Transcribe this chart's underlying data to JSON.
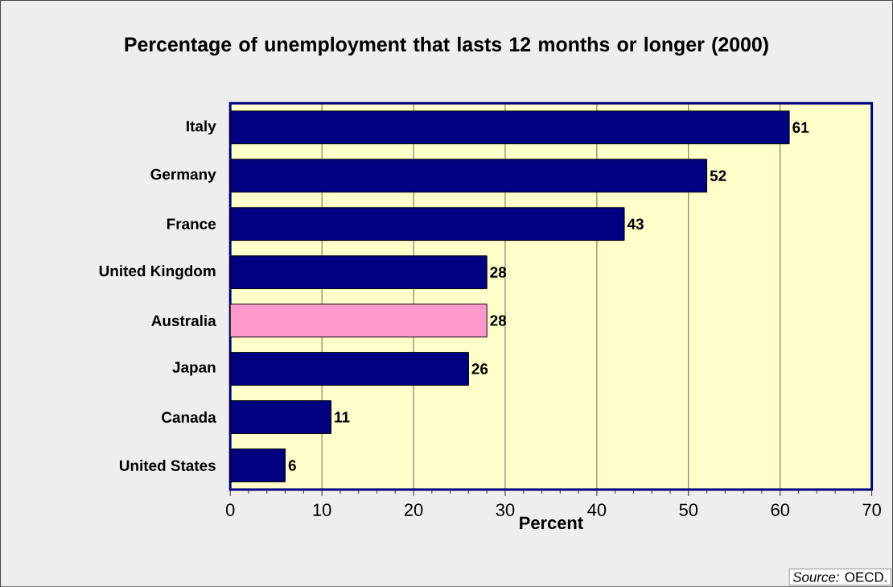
{
  "chart_data": {
    "type": "bar",
    "orientation": "horizontal",
    "title": "Percentage of unemployment that lasts 12 months or longer (2000)",
    "xlabel": "Percent",
    "categories": [
      "Italy",
      "Germany",
      "France",
      "United Kingdom",
      "Australia",
      "Japan",
      "Canada",
      "United States"
    ],
    "values": [
      61,
      52,
      43,
      28,
      28,
      26,
      11,
      6
    ],
    "colors": [
      "#000080",
      "#000080",
      "#000080",
      "#000080",
      "#ff99cc",
      "#000080",
      "#000080",
      "#000080"
    ],
    "data_labels": true,
    "xlim": [
      0,
      70
    ],
    "xticks": [
      0,
      10,
      20,
      30,
      40,
      50,
      60,
      70
    ],
    "grid": "x",
    "annotations": [
      "*Source:* OECD."
    ]
  }
}
